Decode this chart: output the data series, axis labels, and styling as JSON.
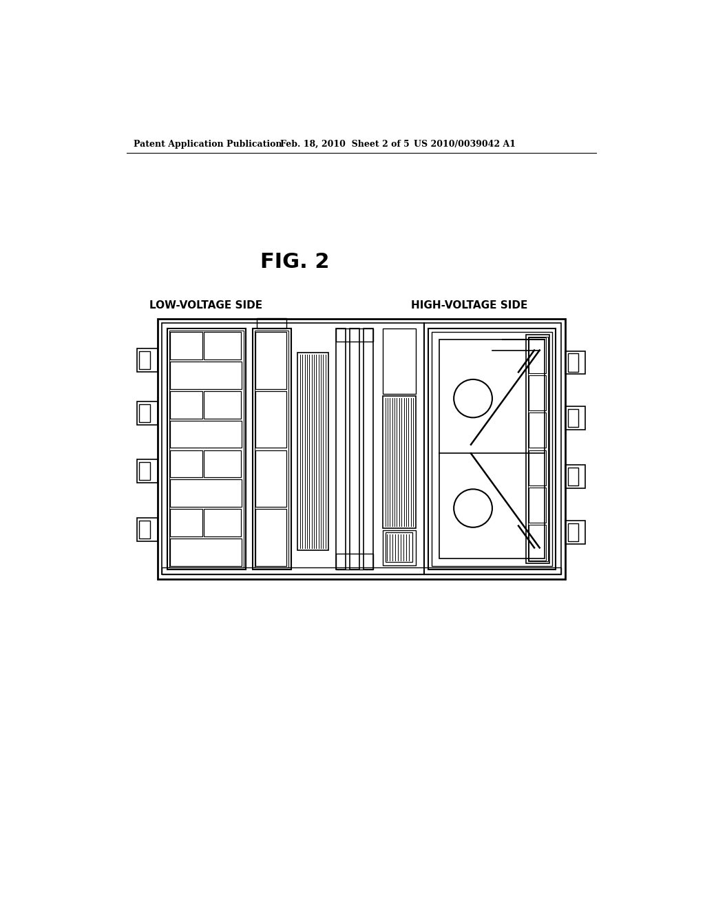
{
  "bg_color": "#ffffff",
  "lc": "#000000",
  "header1": "Patent Application Publication",
  "header2": "Feb. 18, 2010  Sheet 2 of 5",
  "header3": "US 2010/0039042 A1",
  "fig_label": "FIG. 2",
  "label_left": "LOW-VOLTAGE SIDE",
  "label_right": "HIGH-VOLTAGE SIDE"
}
